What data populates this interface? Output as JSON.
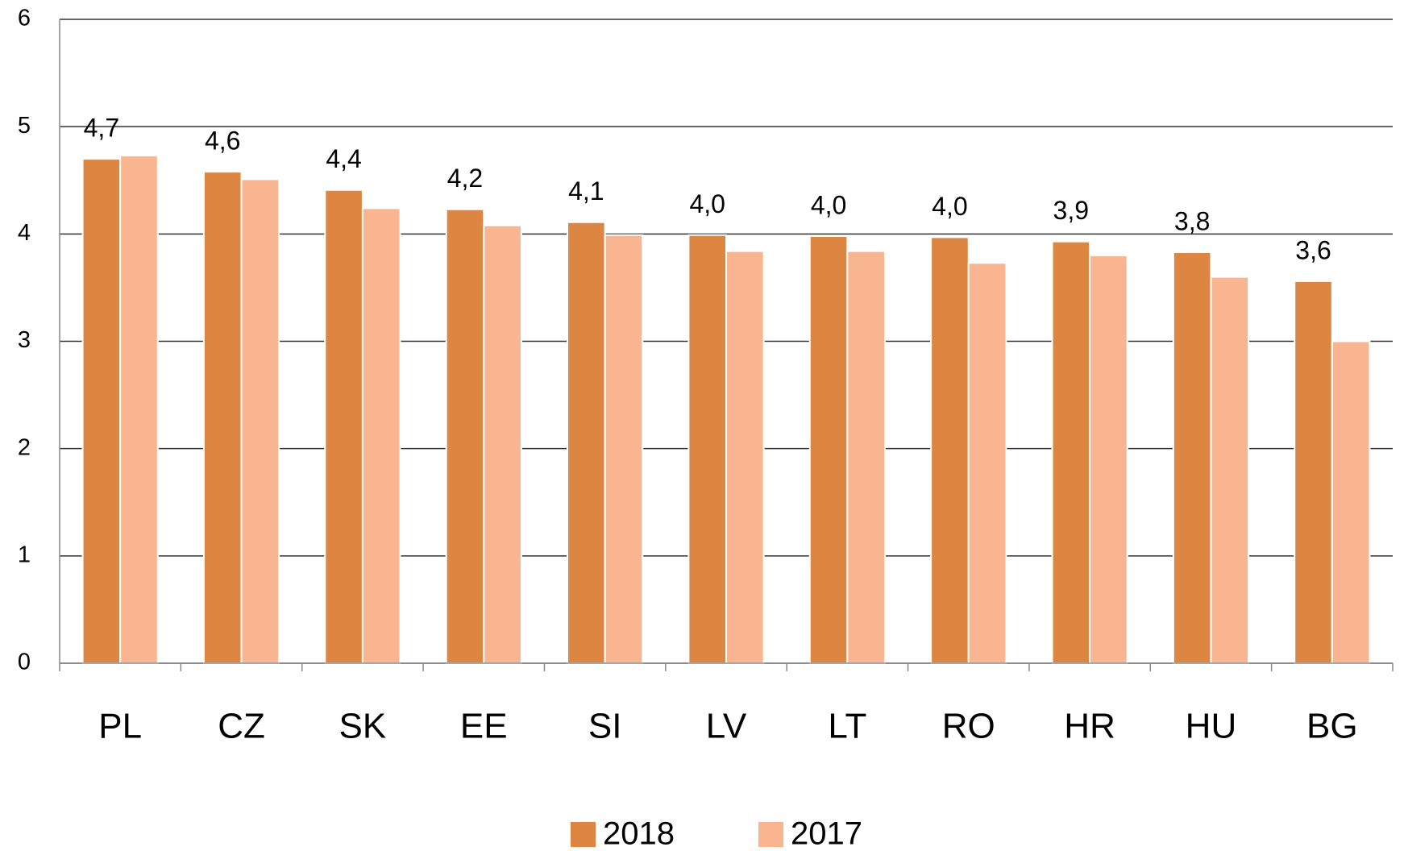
{
  "chart_data": {
    "type": "bar",
    "categories": [
      "PL",
      "CZ",
      "SK",
      "EE",
      "SI",
      "LV",
      "LT",
      "RO",
      "HR",
      "HU",
      "BG"
    ],
    "series": [
      {
        "name": "2018",
        "color": "#dc8642",
        "values": [
          4.7,
          4.58,
          4.41,
          4.23,
          4.11,
          3.99,
          3.98,
          3.97,
          3.93,
          3.83,
          3.56
        ],
        "value_labels": [
          "4,7",
          "4,6",
          "4,4",
          "4,2",
          "4,1",
          "4,0",
          "4,0",
          "4,0",
          "3,9",
          "3,8",
          "3,6"
        ]
      },
      {
        "name": "2017",
        "color": "#f8b590",
        "values": [
          4.73,
          4.51,
          4.24,
          4.08,
          3.99,
          3.84,
          3.84,
          3.73,
          3.8,
          3.6,
          3.0
        ]
      }
    ],
    "ylim": [
      0,
      6
    ],
    "yticks": [
      0,
      1,
      2,
      3,
      4,
      5,
      6
    ],
    "grid": true
  }
}
